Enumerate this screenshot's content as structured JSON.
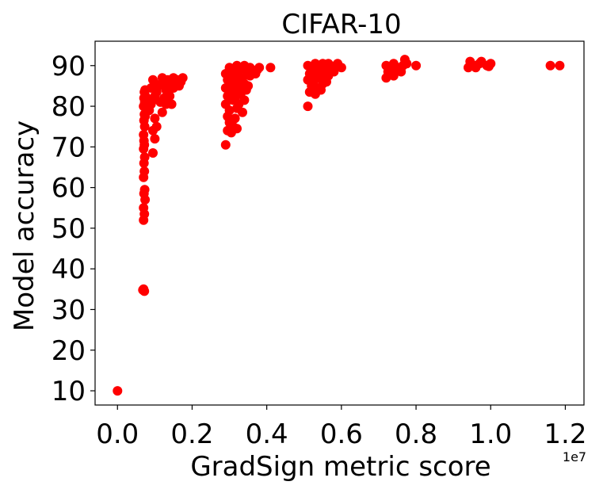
{
  "chart_data": {
    "type": "scatter",
    "title": "CIFAR-10",
    "xlabel": "GradSign metric score",
    "ylabel": "Model accuracy",
    "x_offset_label": "1e7",
    "xlim": [
      -0.06,
      1.25
    ],
    "ylim": [
      6.5,
      96
    ],
    "x_ticks": [
      {
        "value": 0.0,
        "label": "0.0"
      },
      {
        "value": 0.2,
        "label": "0.2"
      },
      {
        "value": 0.4,
        "label": "0.4"
      },
      {
        "value": 0.6,
        "label": "0.6"
      },
      {
        "value": 0.8,
        "label": "0.8"
      },
      {
        "value": 1.0,
        "label": "1.0"
      },
      {
        "value": 1.2,
        "label": "1.2"
      }
    ],
    "y_ticks": [
      {
        "value": 10,
        "label": "10"
      },
      {
        "value": 20,
        "label": "20"
      },
      {
        "value": 30,
        "label": "30"
      },
      {
        "value": 40,
        "label": "40"
      },
      {
        "value": 50,
        "label": "50"
      },
      {
        "value": 60,
        "label": "60"
      },
      {
        "value": 70,
        "label": "70"
      },
      {
        "value": 80,
        "label": "80"
      },
      {
        "value": 90,
        "label": "90"
      }
    ],
    "grid": false,
    "marker_color": "#ff0000",
    "series": [
      {
        "points": [
          [
            0.0,
            10.0
          ],
          [
            0.07,
            35.0
          ],
          [
            0.072,
            34.5
          ],
          [
            0.068,
            34.8
          ],
          [
            0.07,
            52.0
          ],
          [
            0.072,
            53.5
          ],
          [
            0.07,
            55.0
          ],
          [
            0.074,
            57.0
          ],
          [
            0.071,
            58.5
          ],
          [
            0.073,
            59.5
          ],
          [
            0.07,
            62.5
          ],
          [
            0.072,
            64.0
          ],
          [
            0.071,
            66.0
          ],
          [
            0.073,
            67.5
          ],
          [
            0.07,
            69.5
          ],
          [
            0.072,
            70.5
          ],
          [
            0.071,
            71.5
          ],
          [
            0.07,
            73.0
          ],
          [
            0.073,
            75.0
          ],
          [
            0.071,
            76.5
          ],
          [
            0.074,
            77.5
          ],
          [
            0.072,
            78.0
          ],
          [
            0.07,
            80.0
          ],
          [
            0.073,
            81.0
          ],
          [
            0.071,
            82.0
          ],
          [
            0.075,
            82.5
          ],
          [
            0.072,
            83.5
          ],
          [
            0.074,
            84.0
          ],
          [
            0.095,
            68.5
          ],
          [
            0.1,
            72.0
          ],
          [
            0.095,
            74.0
          ],
          [
            0.105,
            75.0
          ],
          [
            0.1,
            77.0
          ],
          [
            0.085,
            79.0
          ],
          [
            0.09,
            80.5
          ],
          [
            0.095,
            81.5
          ],
          [
            0.1,
            82.5
          ],
          [
            0.105,
            83.5
          ],
          [
            0.09,
            84.5
          ],
          [
            0.11,
            85.0
          ],
          [
            0.1,
            85.5
          ],
          [
            0.12,
            86.0
          ],
          [
            0.095,
            86.5
          ],
          [
            0.12,
            78.5
          ],
          [
            0.13,
            80.5
          ],
          [
            0.125,
            82.0
          ],
          [
            0.115,
            81.0
          ],
          [
            0.135,
            83.0
          ],
          [
            0.13,
            84.0
          ],
          [
            0.14,
            85.0
          ],
          [
            0.125,
            85.5
          ],
          [
            0.145,
            86.0
          ],
          [
            0.135,
            86.5
          ],
          [
            0.12,
            87.0
          ],
          [
            0.14,
            82.5
          ],
          [
            0.15,
            84.5
          ],
          [
            0.155,
            85.5
          ],
          [
            0.16,
            86.5
          ],
          [
            0.15,
            87.0
          ],
          [
            0.145,
            80.5
          ],
          [
            0.165,
            85.0
          ],
          [
            0.17,
            86.5
          ],
          [
            0.175,
            87.0
          ],
          [
            0.17,
            86.0
          ],
          [
            0.29,
            70.5
          ],
          [
            0.295,
            74.0
          ],
          [
            0.3,
            76.0
          ],
          [
            0.305,
            73.5
          ],
          [
            0.31,
            75.0
          ],
          [
            0.295,
            77.5
          ],
          [
            0.3,
            79.0
          ],
          [
            0.29,
            80.5
          ],
          [
            0.31,
            81.5
          ],
          [
            0.295,
            82.5
          ],
          [
            0.3,
            83.5
          ],
          [
            0.29,
            84.5
          ],
          [
            0.305,
            85.5
          ],
          [
            0.295,
            86.5
          ],
          [
            0.3,
            87.5
          ],
          [
            0.29,
            88.0
          ],
          [
            0.31,
            88.5
          ],
          [
            0.3,
            89.5
          ],
          [
            0.32,
            74.5
          ],
          [
            0.315,
            77.0
          ],
          [
            0.32,
            79.5
          ],
          [
            0.325,
            80.5
          ],
          [
            0.315,
            82.0
          ],
          [
            0.33,
            83.0
          ],
          [
            0.32,
            84.0
          ],
          [
            0.325,
            85.0
          ],
          [
            0.315,
            86.0
          ],
          [
            0.33,
            87.0
          ],
          [
            0.32,
            88.0
          ],
          [
            0.325,
            89.0
          ],
          [
            0.32,
            90.0
          ],
          [
            0.335,
            78.5
          ],
          [
            0.34,
            81.5
          ],
          [
            0.345,
            84.0
          ],
          [
            0.34,
            85.5
          ],
          [
            0.335,
            87.0
          ],
          [
            0.345,
            88.5
          ],
          [
            0.34,
            90.0
          ],
          [
            0.35,
            85.0
          ],
          [
            0.355,
            87.5
          ],
          [
            0.36,
            88.5
          ],
          [
            0.355,
            89.5
          ],
          [
            0.37,
            88.0
          ],
          [
            0.375,
            89.0
          ],
          [
            0.38,
            89.5
          ],
          [
            0.41,
            89.5
          ],
          [
            0.51,
            80.0
          ],
          [
            0.515,
            83.5
          ],
          [
            0.52,
            85.0
          ],
          [
            0.51,
            86.5
          ],
          [
            0.515,
            88.0
          ],
          [
            0.52,
            89.0
          ],
          [
            0.51,
            90.0
          ],
          [
            0.53,
            83.0
          ],
          [
            0.535,
            84.5
          ],
          [
            0.525,
            86.0
          ],
          [
            0.54,
            87.0
          ],
          [
            0.53,
            88.0
          ],
          [
            0.535,
            89.0
          ],
          [
            0.53,
            90.5
          ],
          [
            0.545,
            84.0
          ],
          [
            0.55,
            85.5
          ],
          [
            0.545,
            87.0
          ],
          [
            0.55,
            88.5
          ],
          [
            0.555,
            89.5
          ],
          [
            0.55,
            90.5
          ],
          [
            0.56,
            86.0
          ],
          [
            0.565,
            87.5
          ],
          [
            0.56,
            89.0
          ],
          [
            0.57,
            90.0
          ],
          [
            0.565,
            90.5
          ],
          [
            0.58,
            88.5
          ],
          [
            0.585,
            90.0
          ],
          [
            0.59,
            90.5
          ],
          [
            0.6,
            89.5
          ],
          [
            0.72,
            87.0
          ],
          [
            0.725,
            88.5
          ],
          [
            0.72,
            90.0
          ],
          [
            0.73,
            89.0
          ],
          [
            0.74,
            87.5
          ],
          [
            0.745,
            89.0
          ],
          [
            0.74,
            90.5
          ],
          [
            0.75,
            89.5
          ],
          [
            0.76,
            88.5
          ],
          [
            0.765,
            90.0
          ],
          [
            0.77,
            91.5
          ],
          [
            0.775,
            90.5
          ],
          [
            0.8,
            90.0
          ],
          [
            0.94,
            89.5
          ],
          [
            0.945,
            91.0
          ],
          [
            0.955,
            90.0
          ],
          [
            0.96,
            89.5
          ],
          [
            0.97,
            90.5
          ],
          [
            0.975,
            91.0
          ],
          [
            0.99,
            90.0
          ],
          [
            1.0,
            90.5
          ],
          [
            0.995,
            89.8
          ],
          [
            1.16,
            90.0
          ],
          [
            1.185,
            90.0
          ]
        ]
      }
    ]
  }
}
